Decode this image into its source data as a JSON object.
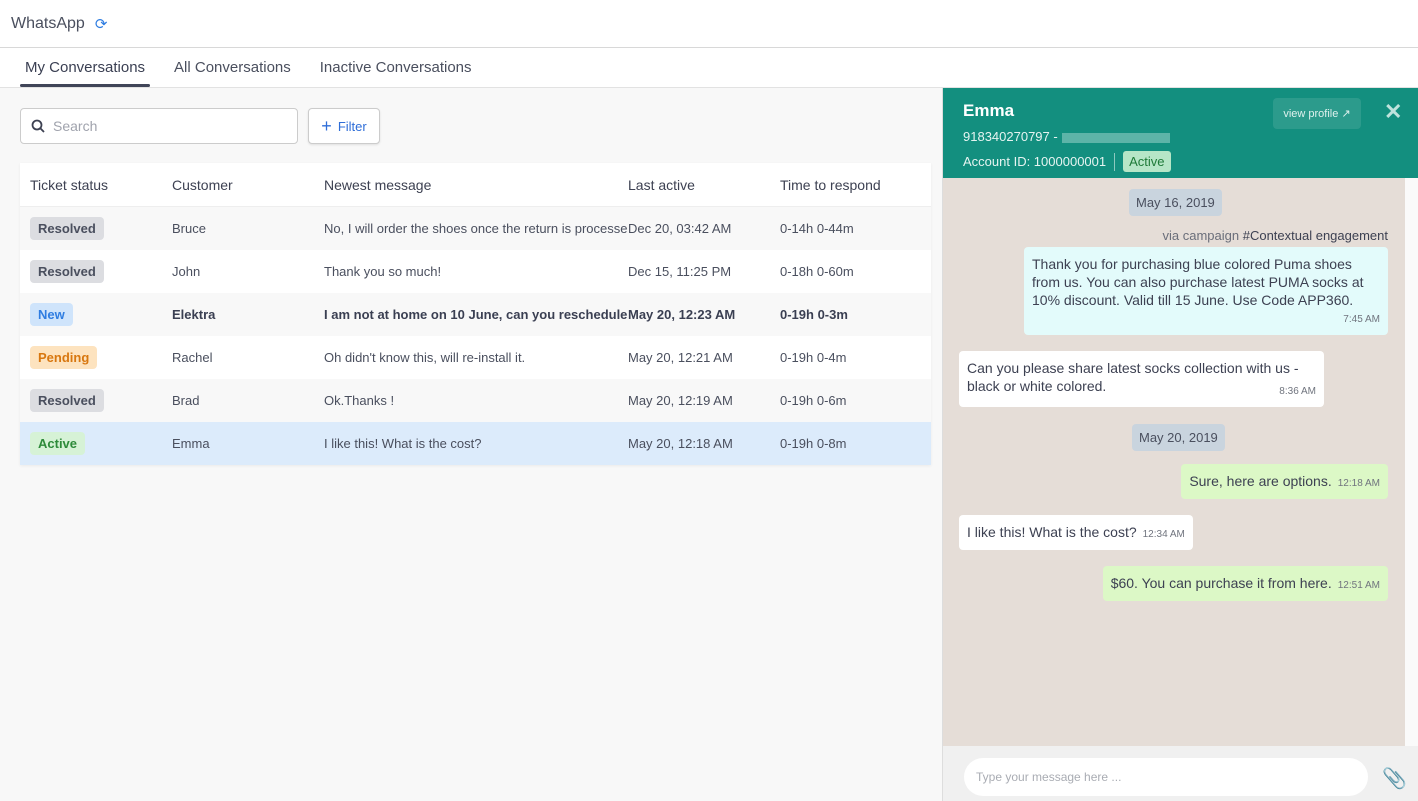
{
  "app": {
    "title": "WhatsApp",
    "sync_icon": "sync-icon"
  },
  "tabs": [
    {
      "label": "My Conversations",
      "active": true
    },
    {
      "label": "All Conversations"
    },
    {
      "label": "Inactive Conversations"
    }
  ],
  "search": {
    "placeholder": "Search"
  },
  "filter": {
    "label": "Filter"
  },
  "table": {
    "headers": [
      "Ticket status",
      "Customer",
      "Newest message",
      "Last active",
      "Time to respond"
    ],
    "rows": [
      {
        "status": "Resolved",
        "customer": "Bruce",
        "message": "No, I will order the shoes once the return is processed",
        "last_active": "Dec 20, 03:42 AM",
        "time": "0-14h 0-44m"
      },
      {
        "status": "Resolved",
        "customer": "John",
        "message": "Thank you so much!",
        "last_active": "Dec 15, 11:25 PM",
        "time": "0-18h 0-60m"
      },
      {
        "status": "New",
        "customer": "Elektra",
        "message": "I am not at home on 10 June, can you reschedule",
        "last_active": "May 20, 12:23 AM",
        "time": "0-19h 0-3m"
      },
      {
        "status": "Pending",
        "customer": "Rachel",
        "message": "Oh didn't know this, will re-install it.",
        "last_active": "May 20, 12:21 AM",
        "time": "0-19h 0-4m"
      },
      {
        "status": "Resolved",
        "customer": "Brad",
        "message": "Ok.Thanks !",
        "last_active": "May 20, 12:19 AM",
        "time": "0-19h 0-6m"
      },
      {
        "status": "Active",
        "customer": "Emma",
        "message": "I like this! What is the cost?",
        "last_active": "May 20, 12:18 AM",
        "time": "0-19h 0-8m"
      }
    ]
  },
  "chat": {
    "name": "Emma",
    "phone": "918340270797 -",
    "account": "Account ID: 1000000001",
    "status": "Active",
    "view_profile": "view profile",
    "date1": "May 16, 2019",
    "via": "via campaign",
    "campaign": "#Contextual engagement",
    "m1": {
      "text": "Thank you for purchasing blue colored Puma shoes from us. You can also purchase latest PUMA socks at 10% discount. Valid till 15 June. Use Code APP360.",
      "time": "7:45 AM"
    },
    "m2": {
      "text": "Can you please share latest socks collection with us - black or white colored.",
      "time": "8:36 AM"
    },
    "date2": "May 20, 2019",
    "m3": {
      "text": "Sure, here are options.",
      "time": "12:18 AM"
    },
    "m4": {
      "text": "I like this! What is the cost?",
      "time": "12:34 AM"
    },
    "m5": {
      "text": "$60. You can purchase it from here.",
      "time": "12:51 AM"
    },
    "input_placeholder": "Type your message here ..."
  },
  "colors": {
    "header": "#138f7f",
    "chat_bg": "#e5ddd7",
    "accent": "#2f7de1"
  }
}
